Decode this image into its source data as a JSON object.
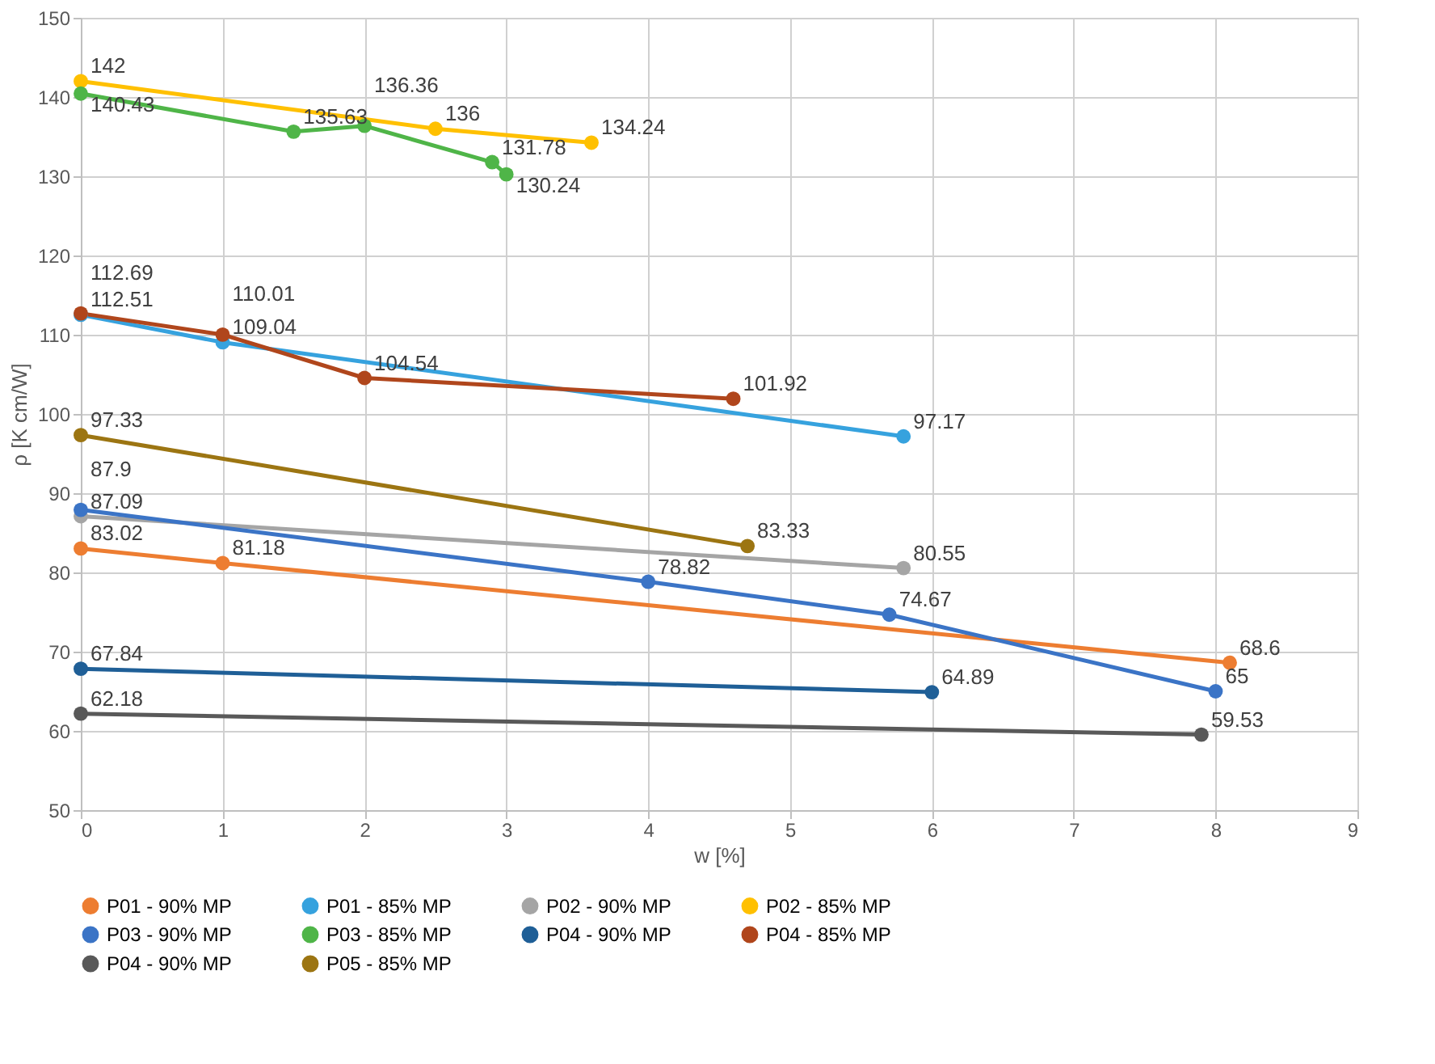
{
  "chart_data": {
    "type": "line",
    "xlabel": "w [%]",
    "ylabel": "ρ [K cm/W]",
    "xlim": [
      0,
      9
    ],
    "xticks": [
      0,
      1,
      2,
      3,
      4,
      5,
      6,
      7,
      8,
      9
    ],
    "ylim": [
      50,
      150
    ],
    "yticks": [
      50,
      60,
      70,
      80,
      90,
      100,
      110,
      120,
      130,
      140,
      150
    ],
    "grid": true,
    "legend": "bottom",
    "marker": "circle",
    "line_style": "solid",
    "data_labels": true,
    "series": [
      {
        "name": "P01 - 90% MP",
        "color": "#ed7d31",
        "x": [
          0,
          1,
          8.1
        ],
        "values": [
          83.02,
          81.18,
          68.6
        ]
      },
      {
        "name": "P01 - 85% MP",
        "color": "#36a2de",
        "x": [
          0,
          1,
          5.8
        ],
        "values": [
          112.51,
          109.04,
          97.17
        ]
      },
      {
        "name": "P02 - 90% MP",
        "color": "#a5a5a5",
        "x": [
          0,
          5.8
        ],
        "values": [
          87.09,
          80.55
        ]
      },
      {
        "name": "P02 - 85% MP",
        "color": "#ffc000",
        "x": [
          0,
          2.5,
          3.6
        ],
        "values": [
          142,
          136,
          134.24
        ]
      },
      {
        "name": "P03 - 90% MP",
        "color": "#3b74c6",
        "x": [
          0,
          4,
          5.7,
          8
        ],
        "values": [
          87.9,
          78.82,
          74.67,
          65
        ]
      },
      {
        "name": "P03 - 85% MP",
        "color": "#4fb548",
        "x": [
          0,
          1.5,
          2,
          2.9,
          3
        ],
        "values": [
          140.43,
          135.63,
          136.36,
          131.78,
          130.24
        ]
      },
      {
        "name": "P04 - 90% MP",
        "color": "#1f5f97",
        "x": [
          0,
          6
        ],
        "values": [
          67.84,
          64.89
        ]
      },
      {
        "name": "P04 - 85% MP",
        "color": "#b0461c",
        "x": [
          0,
          1,
          2,
          4.6
        ],
        "values": [
          112.69,
          110.01,
          104.54,
          101.92
        ]
      },
      {
        "name": "P04 - 90% MP",
        "color": "#595959",
        "x": [
          0,
          7.9
        ],
        "values": [
          62.18,
          59.53
        ]
      },
      {
        "name": "P05 - 85% MP",
        "color": "#9c7512",
        "x": [
          0,
          4.7
        ],
        "values": [
          97.33,
          83.33
        ]
      }
    ]
  }
}
